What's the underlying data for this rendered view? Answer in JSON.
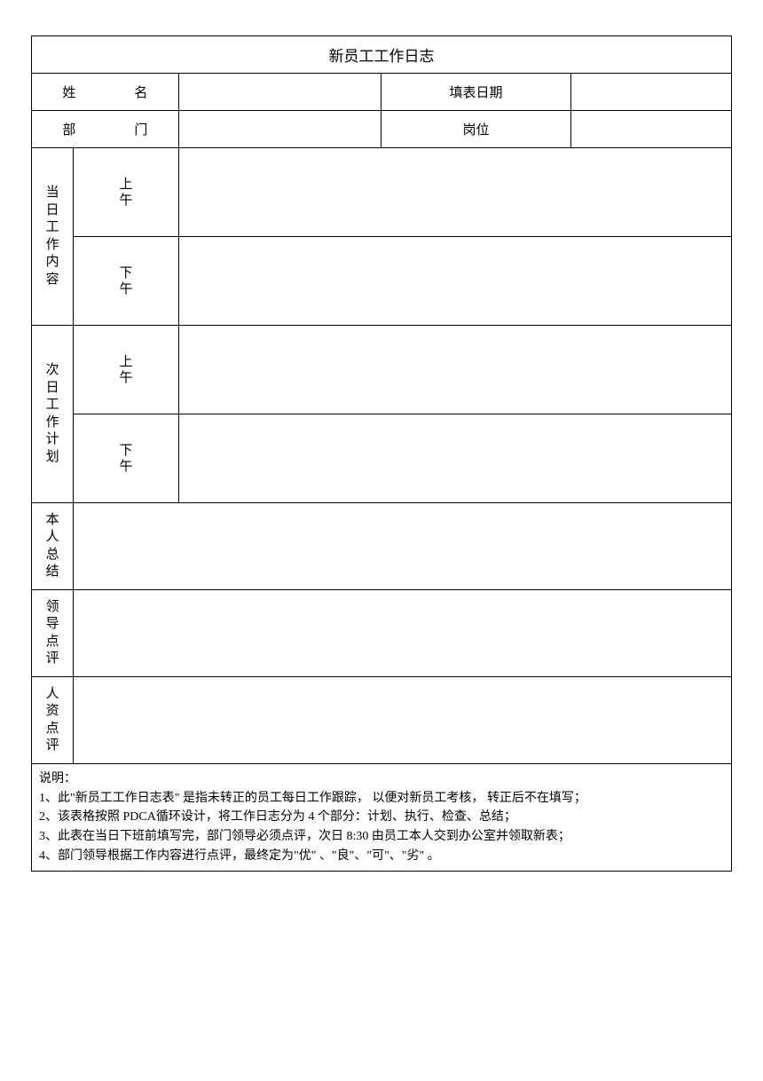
{
  "title": "新员工工作日志",
  "header": {
    "name_label": "姓　　名",
    "name_value": "",
    "date_label": "填表日期",
    "date_value": "",
    "dept_label": "部　　门",
    "dept_value": "",
    "position_label": "岗位",
    "position_value": ""
  },
  "sections": {
    "today_work": {
      "label_chars": [
        "当",
        "日",
        "工",
        "作",
        "内",
        "容"
      ],
      "morning_label_chars": [
        "上",
        "午"
      ],
      "afternoon_label_chars": [
        "下",
        "午"
      ],
      "morning_value": "",
      "afternoon_value": ""
    },
    "next_day_plan": {
      "label_chars": [
        "次",
        "日",
        "工",
        "作",
        "计",
        "划"
      ],
      "morning_label_chars": [
        "上",
        "午"
      ],
      "afternoon_label_chars": [
        "下",
        "午"
      ],
      "morning_value": "",
      "afternoon_value": ""
    },
    "self_summary": {
      "label_chars": [
        "本",
        "人",
        "总",
        "结"
      ],
      "value": ""
    },
    "leader_review": {
      "label_chars": [
        "领",
        "导",
        "点",
        "评"
      ],
      "value": ""
    },
    "hr_review": {
      "label_chars": [
        "人",
        "资",
        "点",
        "评"
      ],
      "value": ""
    }
  },
  "notes": {
    "heading": "说明：",
    "line1_pre": "1、此\"新员工工作日志表\"",
    "line1_mid": " 是指未转正的员工每日工作跟踪，",
    "line1_mid2": " 以便对新员工考核，",
    "line1_end": " 转正后不在填写；",
    "line2_pre": "2、该表格按照",
    "line2_pdca": "  PDCA",
    "line2_mid": "循环设计，将工作日志分为",
    "line2_num": "   4 ",
    "line2_end": "个部分：计划、执行、检查、总结；",
    "line3_pre": "3、此表在当日下班前填写完，部门领导必须点评，次日",
    "line3_time": "      8:30  ",
    "line3_end": "由员工本人交到办公室并领取新表；",
    "line4_pre": "4、部门领导根据工作内容进行点评，最终定为\"优\"",
    "line4_end": "   、\"良\"、\"可\"、\"劣\" 。"
  },
  "styling": {
    "border_color": "#000000",
    "background_color": "#ffffff",
    "font_family": "SimSun",
    "title_fontsize": 17,
    "body_fontsize": 15,
    "notes_fontsize": 14,
    "col_widths_pct": [
      6,
      7,
      8,
      29,
      27,
      23
    ]
  }
}
